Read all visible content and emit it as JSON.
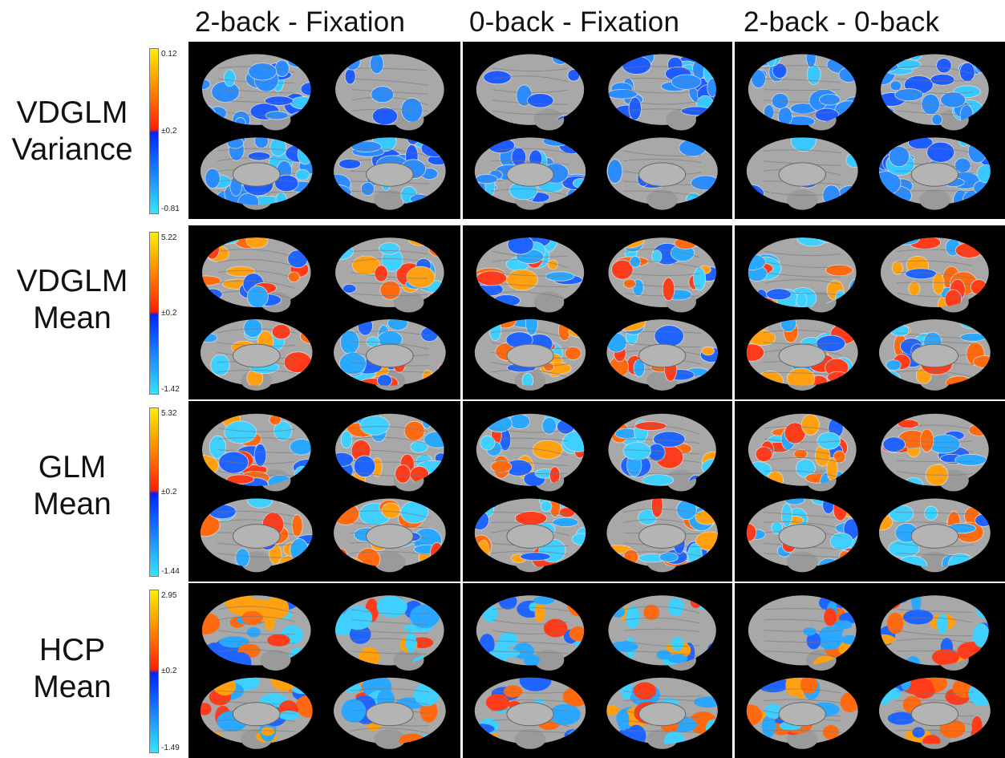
{
  "columns": [
    "2-back - Fixation",
    "0-back - Fixation",
    "2-back - 0-back"
  ],
  "rows": [
    {
      "line1": "VDGLM",
      "line2": "Variance",
      "max": "0.12",
      "mid": "±0.2",
      "min": "-0.81",
      "style": "variance"
    },
    {
      "line1": "VDGLM",
      "line2": "Mean",
      "max": "5.22",
      "mid": "±0.2",
      "min": "-1.42",
      "style": "mean"
    },
    {
      "line1": "GLM",
      "line2": "Mean",
      "max": "5.32",
      "mid": "±0.2",
      "min": "-1.44",
      "style": "mean"
    },
    {
      "line1": "HCP",
      "line2": "Mean",
      "max": "2.95",
      "mid": "±0.2",
      "min": "-1.49",
      "style": "hcp"
    }
  ],
  "colors": {
    "positive_low": "#ff1e00",
    "positive_high": "#ffee00",
    "negative_low": "#0022ff",
    "negative_high": "#33e6ff",
    "brain_gray": "#a8a8a8",
    "background": "#000000"
  },
  "brain_views": [
    "lateral-left",
    "lateral-right",
    "medial-left",
    "medial-right"
  ]
}
